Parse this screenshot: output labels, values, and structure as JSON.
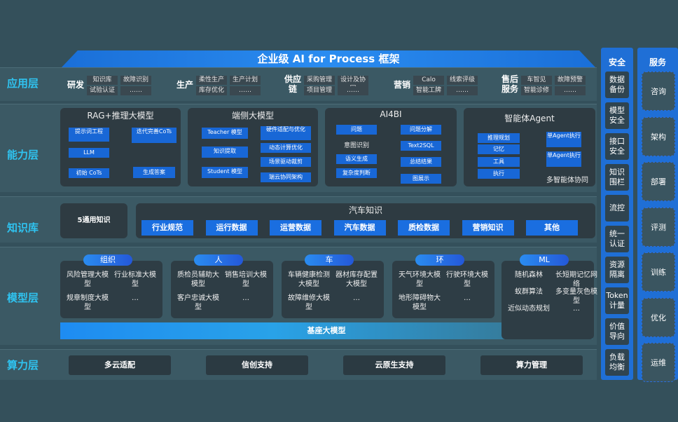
{
  "title": "企业级 AI for Process 框架",
  "layers": {
    "app": "应用层",
    "capability": "能力层",
    "knowledge": "知识库",
    "model": "模型层",
    "compute": "算力层"
  },
  "app": [
    {
      "name": "研发",
      "items": [
        "知识库",
        "故障识别",
        "试验认证",
        "……"
      ]
    },
    {
      "name": "生产",
      "items": [
        "柔性生产",
        "生产计划",
        "库存优化",
        "……"
      ]
    },
    {
      "name": "供应链",
      "items": [
        "采购管理",
        "设计及协同",
        "项目管理",
        "……"
      ]
    },
    {
      "name": "营销",
      "items": [
        "Calo",
        "线索评级",
        "智能工牌",
        "……"
      ]
    },
    {
      "name": "售后服务",
      "items": [
        "车智见",
        "故障预警",
        "智能诊修",
        "……"
      ]
    }
  ],
  "capability": {
    "rag": {
      "title": "RAG+推理大模型",
      "items": [
        "提示词工程",
        "LLM",
        "初始 CoTs",
        "迭代完善CoTs",
        "生成答案"
      ]
    },
    "edge": {
      "title": "端侧大模型",
      "left": [
        "Teacher 模型",
        "知识提取",
        "Student 模型"
      ],
      "right": [
        "硬件适配与优化",
        "动态计算优化",
        "场景驱动裁剪",
        "端云协同架构"
      ]
    },
    "ai4bi": {
      "title": "AI4BI",
      "left": [
        "问题",
        "意图识别",
        "语义生成",
        "复杂度判断"
      ],
      "right": [
        "问题分解",
        "Text2SQL",
        "总结结果",
        "图展示"
      ]
    },
    "agent": {
      "title": "智能体Agent",
      "left": [
        "推理规划",
        "记忆",
        "工具",
        "执行"
      ],
      "right": [
        "单Agent执行",
        "单Agent执行"
      ],
      "footer": "多智能体协同"
    }
  },
  "knowledge": {
    "general": "5通用知识",
    "auto_title": "汽车知识",
    "items": [
      "行业规范",
      "运行数据",
      "运营数据",
      "汽车数据",
      "质检数据",
      "营销知识",
      "其他"
    ]
  },
  "model": {
    "groups": [
      {
        "name": "组织",
        "items": [
          "风险管理大模型",
          "行业标准大模型",
          "规章制度大模型",
          "…"
        ]
      },
      {
        "name": "人",
        "items": [
          "质检员辅助大模型",
          "销售培训大模型",
          "客户忠诚大模型",
          "…"
        ]
      },
      {
        "name": "车",
        "items": [
          "车辆健康检测大模型",
          "器材库存配置大模型",
          "故障维修大模型",
          "…"
        ]
      },
      {
        "name": "环",
        "items": [
          "天气环境大模型",
          "行驶环境大模型",
          "地形障碍物大模型",
          "…"
        ]
      },
      {
        "name": "ML",
        "items": [
          "随机森林",
          "长短期记忆网络",
          "蚁群算法",
          "多变量灰色模型",
          "近似动态规划",
          "…"
        ]
      }
    ],
    "base": "基座大模型"
  },
  "compute": [
    "多云适配",
    "信创支持",
    "云原生支持",
    "算力管理"
  ],
  "security": {
    "title": "安全",
    "items": [
      "数据备份",
      "模型安全",
      "接口安全",
      "知识围栏",
      "流控",
      "统一认证",
      "资源隔离",
      "Token计量",
      "价值导向",
      "负载均衡"
    ]
  },
  "service": {
    "title": "服务",
    "items": [
      "咨询",
      "架构",
      "部署",
      "评测",
      "训练",
      "优化",
      "运维"
    ]
  }
}
